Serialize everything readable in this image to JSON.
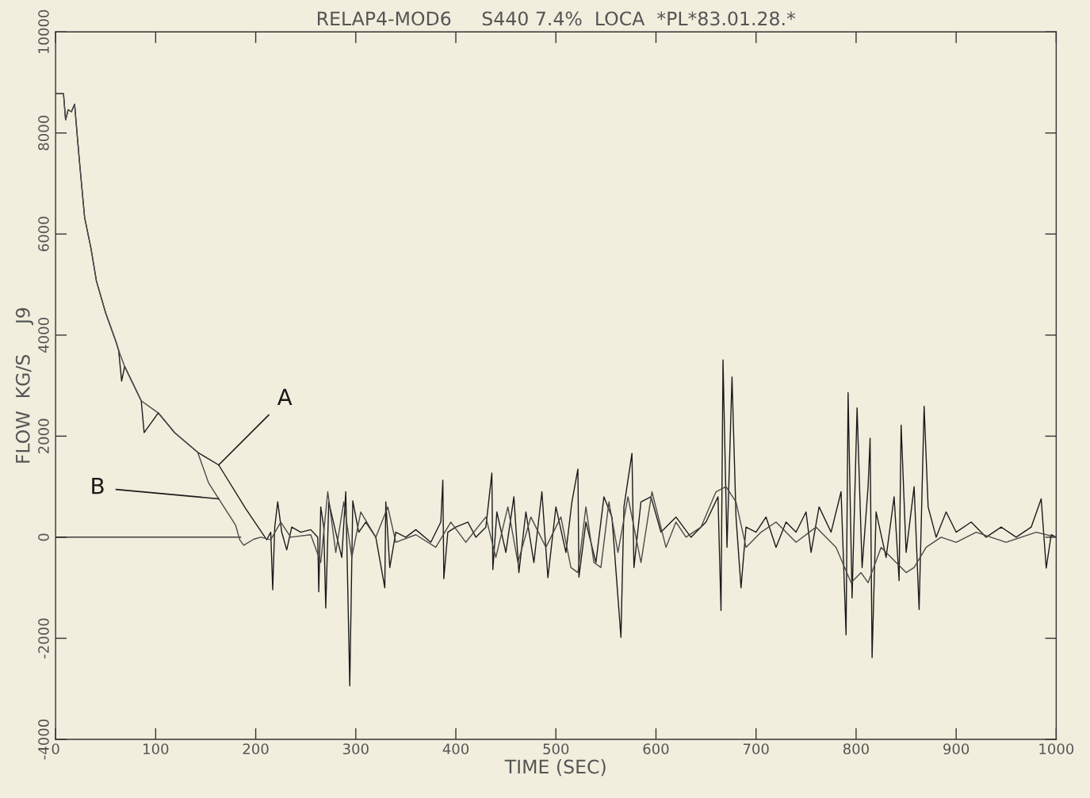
{
  "chart_data": {
    "type": "line",
    "title": "RELAP4-MOD6     S440 7.4%  LOCA  *PL*83.01.28.*",
    "xlabel": "TIME (SEC)",
    "ylabel": "FLOW  KG/S     J9",
    "xlim": [
      0,
      1000
    ],
    "xticks": [
      0,
      100,
      200,
      300,
      400,
      500,
      600,
      700,
      800,
      900,
      1000
    ],
    "ylim": [
      -4000,
      10000
    ],
    "yticks": [
      -4000,
      -2000,
      0,
      2000,
      4000,
      6000,
      8000,
      10000
    ],
    "series": [
      {
        "color": "#1a1a1a",
        "x": [
          0,
          185
        ],
        "values": [
          0,
          0
        ]
      },
      {
        "color": "#1a1a1a",
        "x": [
          0,
          7.9,
          10,
          12.6,
          15.8,
          19,
          23.7,
          29,
          35.5,
          40.8,
          50,
          60.5,
          63,
          66,
          69,
          85.6,
          88.5,
          102.6,
          119,
          142,
          163,
          190,
          211,
          215,
          217,
          219,
          222,
          226,
          231,
          236,
          245,
          255,
          262,
          263,
          265,
          268,
          270,
          273,
          280,
          286,
          290,
          294,
          297,
          303,
          310,
          320,
          329,
          330,
          334,
          340,
          350,
          360,
          375,
          385,
          387,
          388,
          392,
          400,
          412,
          420,
          430,
          436,
          437,
          441,
          450,
          458,
          463,
          470,
          478,
          486,
          492,
          500,
          510,
          516,
          522,
          523,
          530,
          540,
          548,
          556,
          565,
          568,
          576,
          578,
          585,
          595,
          605,
          620,
          635,
          650,
          662,
          665,
          667,
          671,
          676,
          680,
          685,
          690,
          700,
          710,
          720,
          730,
          740,
          750,
          755,
          763,
          775,
          785,
          790,
          792,
          796,
          801,
          806,
          812,
          814,
          816,
          820,
          830,
          838,
          843,
          845,
          850,
          858,
          863,
          868,
          872,
          880,
          890,
          900,
          915,
          930,
          945,
          960,
          975,
          985,
          990,
          995,
          1000
        ],
        "values": [
          8780,
          8780,
          8260,
          8460,
          8420,
          8570,
          7470,
          6330,
          5700,
          5070,
          4440,
          3860,
          3700,
          3090,
          3380,
          2700,
          2070,
          2460,
          2070,
          1680,
          1430,
          565,
          -50,
          100,
          -1040,
          200,
          700,
          100,
          -250,
          200,
          100,
          150,
          0,
          -1080,
          600,
          200,
          -1400,
          700,
          100,
          -400,
          900,
          -2940,
          720,
          100,
          300,
          0,
          -1000,
          700,
          -600,
          100,
          0,
          150,
          -100,
          300,
          1130,
          -820,
          100,
          200,
          300,
          0,
          200,
          1270,
          -640,
          500,
          -300,
          800,
          -700,
          500,
          -500,
          900,
          -800,
          600,
          -300,
          700,
          1350,
          -790,
          300,
          -500,
          800,
          400,
          -1980,
          600,
          1660,
          -600,
          700,
          800,
          100,
          400,
          0,
          300,
          800,
          -1450,
          3510,
          -200,
          3170,
          400,
          -1000,
          200,
          100,
          400,
          -200,
          300,
          100,
          500,
          -300,
          600,
          100,
          900,
          -1930,
          2860,
          -1200,
          2560,
          -600,
          1000,
          1960,
          -2380,
          500,
          -400,
          800,
          -860,
          2220,
          -300,
          1000,
          -1430,
          2590,
          600,
          0,
          500,
          100,
          300,
          0,
          200,
          0,
          200,
          760,
          -610,
          50,
          0
        ]
      },
      {
        "color": "#4a4a4a",
        "x": [
          0,
          7.9,
          10,
          12.6,
          15.8,
          19,
          23.7,
          29,
          35.5,
          40.8,
          50,
          60.5,
          63,
          69,
          85.6,
          102.6,
          119,
          142,
          153,
          163,
          180,
          184,
          188,
          198,
          205,
          215,
          225,
          235,
          255,
          265,
          272,
          280,
          288,
          296,
          305,
          320,
          332,
          340,
          360,
          380,
          395,
          410,
          430,
          440,
          452,
          462,
          475,
          490,
          505,
          515,
          522,
          530,
          538,
          545,
          553,
          562,
          572,
          585,
          596,
          610,
          620,
          630,
          645,
          660,
          670,
          680,
          690,
          705,
          720,
          740,
          760,
          780,
          795,
          805,
          812,
          825,
          840,
          850,
          858,
          870,
          885,
          900,
          920,
          950,
          980,
          1000
        ],
        "values": [
          8780,
          8780,
          8260,
          8460,
          8420,
          8570,
          7470,
          6330,
          5700,
          5070,
          4440,
          3860,
          3700,
          3380,
          2700,
          2460,
          2070,
          1680,
          1070,
          760,
          235,
          -50,
          -160,
          -40,
          0,
          -50,
          300,
          0,
          50,
          -500,
          900,
          -300,
          700,
          -400,
          500,
          0,
          600,
          -100,
          50,
          -200,
          300,
          -100,
          400,
          -400,
          600,
          -500,
          400,
          -200,
          400,
          -600,
          -700,
          600,
          -500,
          -600,
          700,
          -300,
          800,
          -500,
          900,
          -200,
          300,
          0,
          200,
          900,
          1000,
          700,
          -200,
          100,
          300,
          -100,
          200,
          -200,
          -900,
          -700,
          -900,
          -200,
          -500,
          -700,
          -600,
          -200,
          0,
          -100,
          100,
          -100,
          100,
          0
        ]
      }
    ],
    "annotations": [
      {
        "text": "A",
        "x": 163,
        "y": 1430
      },
      {
        "text": "B",
        "x": 163,
        "y": 760
      }
    ]
  }
}
